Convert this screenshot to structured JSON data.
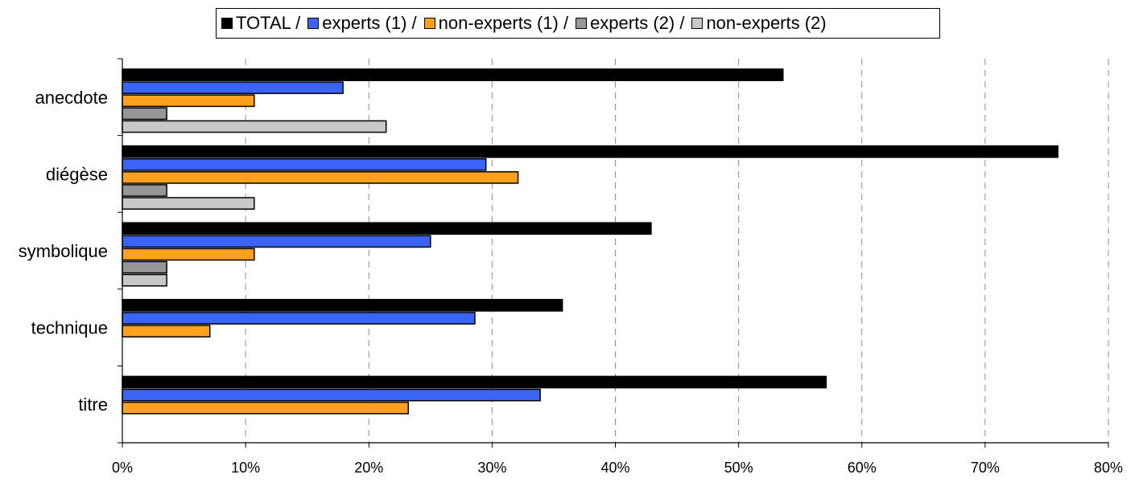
{
  "chart_data": {
    "type": "bar",
    "orientation": "horizontal",
    "title": "",
    "xlabel": "",
    "ylabel": "",
    "categories": [
      "anecdote",
      "diégèse",
      "symbolique",
      "technique",
      "titre"
    ],
    "series": [
      {
        "name": "TOTAL /",
        "color": "#000000",
        "values": [
          53.6,
          75.9,
          42.9,
          35.7,
          57.1
        ]
      },
      {
        "name": "experts (1) /",
        "color": "#3c64f4",
        "values": [
          17.9,
          29.5,
          25.0,
          28.6,
          33.9
        ]
      },
      {
        "name": "non-experts (1) /",
        "color": "#ffa01e",
        "values": [
          10.7,
          32.1,
          10.7,
          7.1,
          23.2
        ]
      },
      {
        "name": "experts (2) /",
        "color": "#969696",
        "values": [
          3.6,
          3.6,
          3.6,
          0,
          0
        ]
      },
      {
        "name": "non-experts (2)",
        "color": "#c8c8c8",
        "values": [
          21.4,
          10.7,
          3.6,
          0,
          0
        ]
      }
    ],
    "xlim": [
      0,
      80
    ],
    "xticks": [
      "0%",
      "10%",
      "20%",
      "30%",
      "40%",
      "50%",
      "60%",
      "70%",
      "80%"
    ],
    "grid": "vertical dashed",
    "legend_position": "top"
  }
}
